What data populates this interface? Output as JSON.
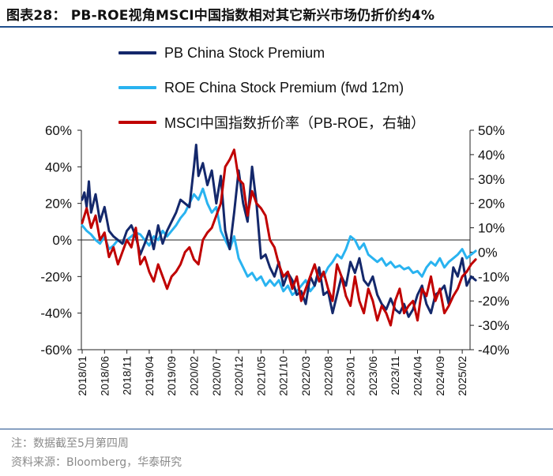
{
  "header": {
    "title": "图表28：  PB-ROE视角MSCI中国指数相对其它新兴市场仍折价约4%"
  },
  "footer": {
    "note": "注：数据截至5月第四周",
    "source": "资料来源：Bloomberg，华泰研究"
  },
  "colors": {
    "pb": "#14286b",
    "roe": "#29b3f0",
    "msci": "#c00000",
    "rule": "#1f4e8c"
  },
  "chart_data": {
    "type": "line",
    "title": "PB-ROE视角MSCI中国指数相对其它新兴市场仍折价约4%",
    "x_categories": [
      "2018/01",
      "2018/06",
      "2018/11",
      "2019/04",
      "2019/09",
      "2020/02",
      "2020/07",
      "2020/12",
      "2021/05",
      "2021/10",
      "2022/03",
      "2022/08",
      "2023/01",
      "2023/06",
      "2023/11",
      "2024/04",
      "2024/09",
      "2025/02"
    ],
    "y_left": {
      "min": -60,
      "max": 60,
      "step": 20,
      "unit": "%",
      "ticks": [
        "60%",
        "40%",
        "20%",
        "0%",
        "-20%",
        "-40%",
        "-60%"
      ]
    },
    "y_right": {
      "min": -40,
      "max": 50,
      "step": 10,
      "unit": "%",
      "ticks": [
        "50%",
        "40%",
        "30%",
        "20%",
        "10%",
        "0%",
        "-10%",
        "-20%",
        "-30%",
        "-40%"
      ]
    },
    "series": [
      {
        "name": "PB China Stock Premium",
        "axis": "left",
        "color": "#14286b",
        "t": [
          0,
          0.5,
          1,
          1.5,
          2,
          3,
          4,
          5,
          6,
          7,
          8,
          9,
          10,
          11,
          12,
          13,
          14,
          15,
          16,
          17,
          18,
          19,
          20,
          21,
          22,
          24,
          25,
          25.5,
          26,
          27,
          28,
          29,
          30,
          31,
          32,
          33,
          34,
          35,
          36,
          37,
          38,
          39,
          40,
          41,
          42,
          43,
          44,
          45,
          46,
          47,
          48,
          49,
          50,
          51,
          52,
          53,
          54,
          55,
          56,
          57,
          58,
          59,
          60,
          61,
          62,
          63,
          64,
          65,
          66,
          67,
          68,
          69,
          70,
          71,
          72,
          73,
          74,
          75,
          76,
          77,
          78,
          79,
          80,
          81,
          82,
          83,
          84,
          85,
          86,
          87,
          88
        ],
        "values": [
          22,
          26,
          18,
          32,
          15,
          25,
          10,
          18,
          5,
          2,
          0,
          -2,
          5,
          8,
          2,
          -8,
          -2,
          5,
          -5,
          8,
          -2,
          5,
          10,
          15,
          22,
          18,
          40,
          52,
          35,
          42,
          30,
          38,
          20,
          35,
          5,
          -5,
          15,
          38,
          20,
          10,
          40,
          20,
          -10,
          -8,
          -15,
          -20,
          -12,
          -25,
          -18,
          -22,
          -30,
          -28,
          -35,
          -20,
          -25,
          -15,
          -30,
          -28,
          -40,
          -30,
          -20,
          -25,
          -12,
          -18,
          -10,
          -22,
          -25,
          -20,
          -30,
          -35,
          -38,
          -32,
          -38,
          -40,
          -35,
          -42,
          -38,
          -30,
          -25,
          -35,
          -40,
          -30,
          -28,
          -25,
          -35,
          -15,
          -20,
          -10,
          -25,
          -20,
          -22
        ]
      },
      {
        "name": "ROE China Stock Premium (fwd 12m)",
        "axis": "left",
        "color": "#29b3f0",
        "t": [
          0,
          1,
          2,
          3,
          4,
          5,
          6,
          7,
          8,
          9,
          10,
          11,
          12,
          13,
          14,
          15,
          16,
          17,
          18,
          19,
          20,
          21,
          22,
          23,
          24,
          25,
          26,
          27,
          28,
          29,
          30,
          31,
          32,
          33,
          34,
          35,
          36,
          37,
          38,
          39,
          40,
          41,
          42,
          43,
          44,
          45,
          46,
          47,
          48,
          49,
          50,
          51,
          52,
          53,
          54,
          55,
          56,
          57,
          58,
          59,
          60,
          61,
          62,
          63,
          64,
          65,
          66,
          67,
          68,
          69,
          70,
          71,
          72,
          73,
          74,
          75,
          76,
          77,
          78,
          79,
          80,
          81,
          82,
          83,
          84,
          85,
          86,
          87,
          88
        ],
        "values": [
          8,
          5,
          3,
          0,
          -2,
          2,
          -5,
          -3,
          0,
          -2,
          0,
          2,
          4,
          3,
          0,
          -3,
          2,
          0,
          5,
          2,
          5,
          8,
          12,
          15,
          20,
          25,
          22,
          28,
          20,
          15,
          18,
          5,
          0,
          -5,
          2,
          -10,
          -15,
          -20,
          -18,
          -22,
          -20,
          -25,
          -22,
          -25,
          -22,
          -28,
          -25,
          -30,
          -28,
          -25,
          -22,
          -28,
          -25,
          -18,
          -20,
          -15,
          -12,
          -8,
          -10,
          -5,
          2,
          0,
          -5,
          -2,
          -8,
          -10,
          -12,
          -10,
          -14,
          -12,
          -15,
          -14,
          -16,
          -15,
          -18,
          -17,
          -20,
          -15,
          -12,
          -14,
          -10,
          -15,
          -12,
          -10,
          -8,
          -5,
          -10,
          -8,
          -6
        ]
      },
      {
        "name": "MSCI中国指数折价率（PB-ROE，右轴）",
        "axis": "right",
        "color": "#c00000",
        "t": [
          0,
          1,
          2,
          3,
          4,
          5,
          6,
          7,
          8,
          9,
          10,
          11,
          12,
          13,
          14,
          15,
          16,
          17,
          18,
          19,
          20,
          21,
          22,
          23,
          24,
          25,
          26,
          27,
          28,
          29,
          30,
          31,
          32,
          33,
          34,
          35,
          36,
          37,
          38,
          39,
          40,
          41,
          42,
          43,
          44,
          45,
          46,
          47,
          48,
          49,
          50,
          51,
          52,
          53,
          54,
          55,
          56,
          57,
          58,
          59,
          60,
          61,
          62,
          63,
          64,
          65,
          66,
          67,
          68,
          69,
          70,
          71,
          72,
          73,
          74,
          75,
          76,
          77,
          78,
          79,
          80,
          81,
          82,
          83,
          84,
          85,
          86,
          87,
          88
        ],
        "values": [
          12,
          18,
          10,
          15,
          5,
          8,
          -2,
          2,
          -5,
          0,
          5,
          2,
          10,
          -5,
          -2,
          -8,
          -12,
          -5,
          -10,
          -15,
          -10,
          -8,
          -5,
          0,
          2,
          -3,
          -5,
          5,
          8,
          10,
          15,
          20,
          35,
          38,
          42,
          30,
          28,
          15,
          25,
          20,
          18,
          15,
          5,
          2,
          -5,
          -10,
          -8,
          -15,
          -10,
          -20,
          -15,
          -10,
          -5,
          -12,
          -8,
          -15,
          -20,
          -5,
          -10,
          -18,
          -22,
          -10,
          -20,
          -25,
          -15,
          -20,
          -28,
          -22,
          -25,
          -30,
          -20,
          -15,
          -25,
          -22,
          -20,
          -28,
          -15,
          -18,
          -10,
          -20,
          -15,
          -25,
          -22,
          -18,
          -15,
          -10,
          -8,
          -5,
          -3
        ]
      }
    ]
  }
}
